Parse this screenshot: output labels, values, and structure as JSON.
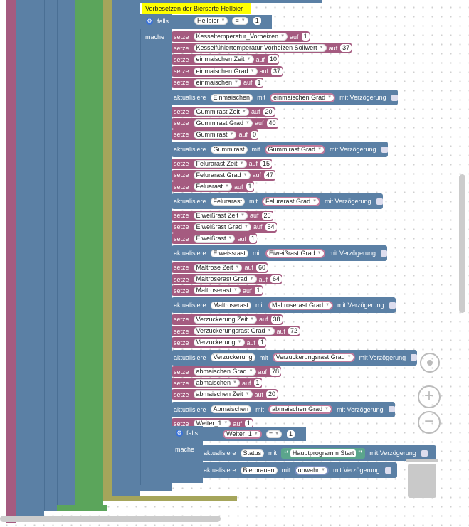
{
  "comment": "Vorbesetzen der Biersorte Hellbier",
  "if1": {
    "falls": "falls",
    "mache": "mache",
    "var": "Hellbier",
    "op": "=",
    "value": "1"
  },
  "rows": [
    {
      "t": "s",
      "var": "Kesseltemperatur_Vorheizen",
      "val": "1"
    },
    {
      "t": "s",
      "var": "Kesselfühlertemperatur Vorheizen Sollwert",
      "val": "37"
    },
    {
      "t": "s",
      "var": "einmaischen Zeit",
      "val": "10"
    },
    {
      "t": "s",
      "var": "einmaischen Grad",
      "val": "37"
    },
    {
      "t": "s",
      "var": "einmaischen",
      "val": "1"
    },
    {
      "t": "a",
      "name": "Einmaischen",
      "var": "einmaischen Grad"
    },
    {
      "t": "s",
      "var": "Gummirast Zeit",
      "val": "20"
    },
    {
      "t": "s",
      "var": "Gummirast Grad",
      "val": "40"
    },
    {
      "t": "s",
      "var": "Gummirast",
      "val": "0"
    },
    {
      "t": "a",
      "name": "Gummirast",
      "var": "Gummirast Grad"
    },
    {
      "t": "s",
      "var": "Felurarast Zeit",
      "val": "15"
    },
    {
      "t": "s",
      "var": "Felurarast Grad",
      "val": "47"
    },
    {
      "t": "s",
      "var": "Feluarast",
      "val": "1"
    },
    {
      "t": "a",
      "name": "Felurarast",
      "var": "Felurarast Grad"
    },
    {
      "t": "s",
      "var": "Eiweißrast Zeit",
      "val": "25"
    },
    {
      "t": "s",
      "var": "Eiweißrast Grad",
      "val": "54"
    },
    {
      "t": "s",
      "var": "Eiweißrast",
      "val": "1"
    },
    {
      "t": "a",
      "name": "Eiweissrast",
      "var": "Eiweißrast Grad"
    },
    {
      "t": "s",
      "var": "Maltrose Zeit",
      "val": "60"
    },
    {
      "t": "s",
      "var": "Maltroserast Grad",
      "val": "64"
    },
    {
      "t": "s",
      "var": "Maltroserast",
      "val": "1"
    },
    {
      "t": "a",
      "name": "Maltroserast",
      "var": "Maltroserast Grad"
    },
    {
      "t": "s",
      "var": "Verzuckerung Zeit",
      "val": "38"
    },
    {
      "t": "s",
      "var": "Verzuckerungsrast Grad",
      "val": "72"
    },
    {
      "t": "s",
      "var": "Verzuckerung",
      "val": "1"
    },
    {
      "t": "a",
      "name": "Verzuckerung",
      "var": "Verzuckerungsrast Grad"
    },
    {
      "t": "s",
      "var": "abmaischen Grad",
      "val": "78"
    },
    {
      "t": "s",
      "var": "abmaischen",
      "val": "1"
    },
    {
      "t": "s",
      "var": "abmaischen Zeit",
      "val": "20"
    },
    {
      "t": "a",
      "name": "Abmaischen",
      "var": "abmaischen Grad"
    },
    {
      "t": "s",
      "var": "Weiter_1",
      "val": "1"
    }
  ],
  "if2": {
    "falls": "falls",
    "mache": "mache",
    "var": "Weiter_1",
    "op": "=",
    "value": "1"
  },
  "inner": [
    {
      "name": "Status",
      "str": "Hauptprogramm Start"
    },
    {
      "name": "Bierbrauen",
      "var": "unwahr"
    }
  ],
  "labels": {
    "setze": "setze",
    "auf": "auf",
    "aktualisiere": "aktualisiere",
    "mit": "mit",
    "verz": "mit Verzögerung"
  },
  "colors": {
    "setze": "#a55b80",
    "aktualisiere": "#5b80a5",
    "logic": "#5b80a5",
    "text": "#5ba58c",
    "comment": "#ffff00"
  }
}
